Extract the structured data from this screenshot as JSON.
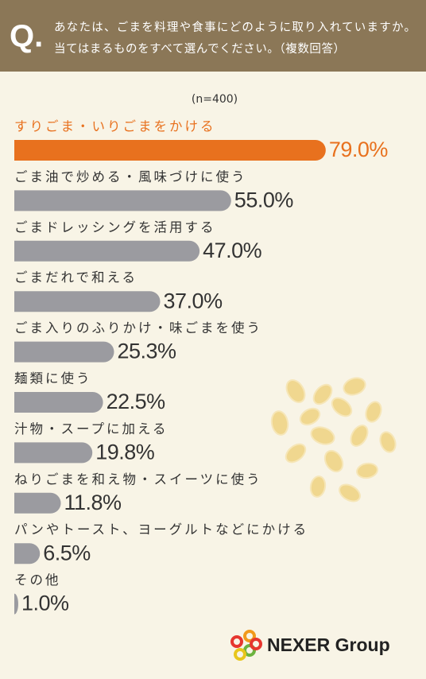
{
  "header": {
    "mark": "Q.",
    "question": [
      "あなたは、ごまを料理や食事にどのように取り入れていますか。",
      "当てはまるものをすべて選んでください。（複数回答）"
    ]
  },
  "chart_data": {
    "type": "bar",
    "orientation": "horizontal",
    "subtitle": "(n=400)",
    "categories": [
      "すりごま・いりごまをかける",
      "ごま油で炒める・風味づけに使う",
      "ごまドレッシングを活用する",
      "ごまだれで和える",
      "ごま入りのふりかけ・味ごまを使う",
      "麺類に使う",
      "汁物・スープに加える",
      "ねりごまを和え物・スイーツに使う",
      "パンやトースト、ヨーグルトなどにかける",
      "その他"
    ],
    "values": [
      79.0,
      55.0,
      47.0,
      37.0,
      25.3,
      22.5,
      19.8,
      11.8,
      6.5,
      1.0
    ],
    "value_labels": [
      "79.0%",
      "55.0%",
      "47.0%",
      "37.0%",
      "25.3%",
      "22.5%",
      "19.8%",
      "11.8%",
      "6.5%",
      "1.0%"
    ],
    "colors": [
      "#e8711e",
      "#9b9ba0",
      "#9b9ba0",
      "#9b9ba0",
      "#9b9ba0",
      "#9b9ba0",
      "#9b9ba0",
      "#9b9ba0",
      "#9b9ba0",
      "#9b9ba0"
    ],
    "xlim": [
      0,
      100
    ]
  },
  "footer": {
    "brand": "NEXER Group"
  }
}
